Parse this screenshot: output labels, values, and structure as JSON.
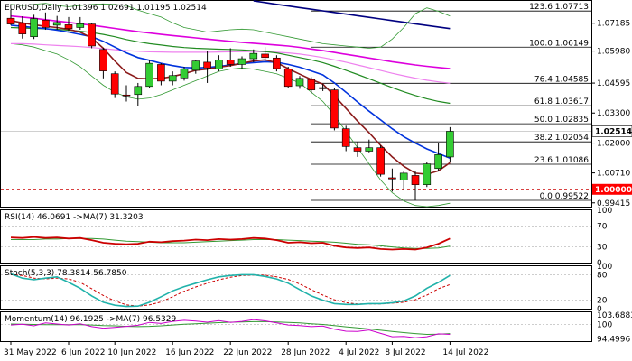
{
  "header": {
    "main": "EURUSD,Daily  1.01396 1.02691 1.01195 1.02514",
    "rsi": "RSI(14) 46.0691  ->MA(7) 31.3203",
    "stoch": "Stoch(5,3,3) 78.3814 56.7850",
    "momentum": "Momentum(14) 96.1925  ->MA(7) 96.5329"
  },
  "colors": {
    "bull": "#33cc33",
    "bear": "#ff0000",
    "wick": "#000000",
    "ma_darkred": "#8b1a1a",
    "ma_blue": "#0033dd",
    "ma_green": "#228b22",
    "ma_magenta": "#dd00dd",
    "ma_pink": "#ee82ee",
    "ma_navy": "#000080",
    "bollinger": "#339933",
    "fib_line": "#000000",
    "dotted": "#cc0000",
    "rsi_line": "#cc0000",
    "rsi_ma": "#339933",
    "stoch_main": "#20b2aa",
    "stoch_signal": "#cc0000",
    "mom_line": "#cc00cc",
    "mom_ma": "#339933",
    "level_tag_bg": "#ff0000"
  },
  "chart_data": [
    {
      "type": "candlestick",
      "title": "EURUSD,Daily",
      "ohlc_last": {
        "open": 1.01396,
        "high": 1.02691,
        "low": 1.01195,
        "close": 1.02514
      },
      "x_ticks": [
        "31 May 2022",
        "6 Jun 2022",
        "10 Jun 2022",
        "16 Jun 2022",
        "22 Jun 2022",
        "28 Jun 2022",
        "4 Jul 2022",
        "8 Jul 2022",
        "14 Jul 2022"
      ],
      "y_ticks": [
        1.07185,
        1.0598,
        1.04595,
        1.033,
        1.02,
        1.0071,
        0.99415
      ],
      "ylim": [
        0.9925,
        1.0815
      ],
      "candles": [
        {
          "o": 1.074,
          "h": 1.0778,
          "l": 1.071,
          "c": 1.0715
        },
        {
          "o": 1.0718,
          "h": 1.0748,
          "l": 1.0652,
          "c": 1.0672
        },
        {
          "o": 1.066,
          "h": 1.0755,
          "l": 1.065,
          "c": 1.0738
        },
        {
          "o": 1.0732,
          "h": 1.0765,
          "l": 1.069,
          "c": 1.07
        },
        {
          "o": 1.071,
          "h": 1.075,
          "l": 1.069,
          "c": 1.0722
        },
        {
          "o": 1.0712,
          "h": 1.0745,
          "l": 1.0685,
          "c": 1.0695
        },
        {
          "o": 1.07,
          "h": 1.0745,
          "l": 1.069,
          "c": 1.0716
        },
        {
          "o": 1.0715,
          "h": 1.072,
          "l": 1.061,
          "c": 1.062
        },
        {
          "o": 1.0605,
          "h": 1.0612,
          "l": 1.048,
          "c": 1.0512
        },
        {
          "o": 1.05,
          "h": 1.051,
          "l": 1.0395,
          "c": 1.0412
        },
        {
          "o": 1.0408,
          "h": 1.045,
          "l": 1.038,
          "c": 1.0405
        },
        {
          "o": 1.041,
          "h": 1.046,
          "l": 1.036,
          "c": 1.0445
        },
        {
          "o": 1.0445,
          "h": 1.056,
          "l": 1.044,
          "c": 1.0545
        },
        {
          "o": 1.054,
          "h": 1.0545,
          "l": 1.045,
          "c": 1.0468
        },
        {
          "o": 1.0468,
          "h": 1.051,
          "l": 1.045,
          "c": 1.0492
        },
        {
          "o": 1.0482,
          "h": 1.053,
          "l": 1.047,
          "c": 1.052
        },
        {
          "o": 1.0515,
          "h": 1.056,
          "l": 1.05,
          "c": 1.0555
        },
        {
          "o": 1.055,
          "h": 1.06,
          "l": 1.046,
          "c": 1.0525
        },
        {
          "o": 1.052,
          "h": 1.058,
          "l": 1.051,
          "c": 1.056
        },
        {
          "o": 1.056,
          "h": 1.061,
          "l": 1.053,
          "c": 1.054
        },
        {
          "o": 1.054,
          "h": 1.0575,
          "l": 1.052,
          "c": 1.0565
        },
        {
          "o": 1.0565,
          "h": 1.0605,
          "l": 1.055,
          "c": 1.0588
        },
        {
          "o": 1.0585,
          "h": 1.0615,
          "l": 1.0555,
          "c": 1.057
        },
        {
          "o": 1.0568,
          "h": 1.058,
          "l": 1.051,
          "c": 1.0522
        },
        {
          "o": 1.052,
          "h": 1.053,
          "l": 1.044,
          "c": 1.0445
        },
        {
          "o": 1.0448,
          "h": 1.049,
          "l": 1.0435,
          "c": 1.048
        },
        {
          "o": 1.0475,
          "h": 1.0485,
          "l": 1.0415,
          "c": 1.043
        },
        {
          "o": 1.044,
          "h": 1.0455,
          "l": 1.0425,
          "c": 1.0435
        },
        {
          "o": 1.043,
          "h": 1.044,
          "l": 1.0255,
          "c": 1.0265
        },
        {
          "o": 1.0262,
          "h": 1.0275,
          "l": 1.0165,
          "c": 1.0185
        },
        {
          "o": 1.018,
          "h": 1.0205,
          "l": 1.014,
          "c": 1.0165
        },
        {
          "o": 1.0165,
          "h": 1.0215,
          "l": 1.016,
          "c": 1.018
        },
        {
          "o": 1.018,
          "h": 1.019,
          "l": 1.0055,
          "c": 1.0065
        },
        {
          "o": 1.005,
          "h": 1.009,
          "l": 0.999,
          "c": 1.0045
        },
        {
          "o": 1.004,
          "h": 1.008,
          "l": 1.0,
          "c": 1.007
        },
        {
          "o": 1.006,
          "h": 1.008,
          "l": 0.9952,
          "c": 1.002
        },
        {
          "o": 1.002,
          "h": 1.012,
          "l": 1.001,
          "c": 1.011
        },
        {
          "o": 1.009,
          "h": 1.02,
          "l": 1.008,
          "c": 1.015
        },
        {
          "o": 1.014,
          "h": 1.0269,
          "l": 1.012,
          "c": 1.0251
        }
      ],
      "fib_levels": [
        {
          "label": "123.6 1.07713",
          "value": 1.07713,
          "start": 26
        },
        {
          "label": "100.0 1.06149",
          "value": 1.06149,
          "start": 26
        },
        {
          "label": "76.4 1.04585",
          "value": 1.04585,
          "start": 26
        },
        {
          "label": "61.8 1.03617",
          "value": 1.03617,
          "start": 26
        },
        {
          "label": "50.0 1.02835",
          "value": 1.02835,
          "start": 26
        },
        {
          "label": "38.2 1.02054",
          "value": 1.02054,
          "start": 26
        },
        {
          "label": "23.6 1.01086",
          "value": 1.01086,
          "start": 26
        },
        {
          "label": "0.0 0.99522",
          "value": 0.99522,
          "start": 26
        }
      ],
      "level_line": 1.0,
      "level_tag": "1.00000",
      "price_tag": "1.02514",
      "last_close_line": 1.02514,
      "moving_averages": [
        {
          "color": "ma_navy",
          "values": [
            null,
            null,
            null,
            null,
            null,
            null,
            null,
            null,
            null,
            null,
            null,
            null,
            null,
            null,
            null,
            null,
            null,
            null,
            null,
            null,
            null,
            1.0815,
            1.0808,
            1.08,
            1.0793,
            1.0786,
            1.0779,
            1.0772,
            1.0765,
            1.0758,
            1.0751,
            1.0744,
            1.0737,
            1.073,
            1.0723,
            1.0716,
            1.0709,
            1.0702,
            1.0695
          ]
        },
        {
          "color": "ma_magenta",
          "values": [
            1.075,
            1.0745,
            1.074,
            1.0734,
            1.0728,
            1.0722,
            1.0716,
            1.071,
            1.0703,
            1.0696,
            1.0689,
            1.0682,
            1.0676,
            1.067,
            1.0665,
            1.066,
            1.0655,
            1.065,
            1.0645,
            1.064,
            1.0636,
            1.0632,
            1.0628,
            1.0624,
            1.062,
            1.0614,
            1.0607,
            1.06,
            1.0592,
            1.0584,
            1.0576,
            1.0568,
            1.056,
            1.0552,
            1.0545,
            1.0538,
            1.0532,
            1.0527,
            1.0522
          ]
        },
        {
          "color": "ma_pink",
          "values": [
            1.063,
            1.063,
            1.0628,
            1.0625,
            1.0622,
            1.062,
            1.0617,
            1.0613,
            1.0609,
            1.0604,
            1.06,
            1.0597,
            1.0595,
            1.0594,
            1.0593,
            1.0593,
            1.0593,
            1.0593,
            1.0594,
            1.0595,
            1.0596,
            1.0596,
            1.0595,
            1.0593,
            1.059,
            1.0585,
            1.0578,
            1.057,
            1.056,
            1.055,
            1.0538,
            1.0526,
            1.0514,
            1.0502,
            1.0491,
            1.0481,
            1.0472,
            1.0465,
            1.0459
          ]
        },
        {
          "color": "ma_green",
          "values": [
            1.07,
            1.0698,
            1.0696,
            1.0694,
            1.0692,
            1.0688,
            1.0684,
            1.0678,
            1.067,
            1.066,
            1.0648,
            1.0638,
            1.063,
            1.0624,
            1.0618,
            1.0613,
            1.061,
            1.0608,
            1.0606,
            1.0605,
            1.0603,
            1.06,
            1.0596,
            1.059,
            1.058,
            1.057,
            1.056,
            1.0548,
            1.0532,
            1.0515,
            1.0497,
            1.0478,
            1.0459,
            1.044,
            1.0422,
            1.0406,
            1.0392,
            1.038,
            1.0372
          ]
        },
        {
          "color": "ma_blue",
          "values": [
            1.071,
            1.0705,
            1.07,
            1.0695,
            1.0688,
            1.068,
            1.067,
            1.066,
            1.064,
            1.0615,
            1.059,
            1.057,
            1.0558,
            1.0545,
            1.0535,
            1.0527,
            1.0525,
            1.0527,
            1.0532,
            1.0538,
            1.0544,
            1.0548,
            1.0552,
            1.055,
            1.054,
            1.0528,
            1.0512,
            1.0495,
            1.046,
            1.042,
            1.0378,
            1.0338,
            1.03,
            1.0262,
            1.0228,
            1.02,
            1.0175,
            1.0155,
            1.0135
          ]
        },
        {
          "color": "ma_darkred",
          "values": [
            1.073,
            1.072,
            1.0712,
            1.0705,
            1.07,
            1.0692,
            1.068,
            1.0655,
            1.061,
            1.0555,
            1.0505,
            1.048,
            1.0478,
            1.048,
            1.0488,
            1.05,
            1.0515,
            1.052,
            1.0528,
            1.0535,
            1.0545,
            1.0555,
            1.056,
            1.0548,
            1.0522,
            1.0498,
            1.0475,
            1.0455,
            1.0405,
            1.035,
            1.0295,
            1.0245,
            1.019,
            1.014,
            1.01,
            1.007,
            1.0065,
            1.008,
            1.0115
          ]
        }
      ],
      "bollinger": {
        "upper": [
          1.08,
          1.0795,
          1.08,
          1.0805,
          1.0795,
          1.079,
          1.0795,
          1.08,
          1.0802,
          1.08,
          1.0795,
          1.0775,
          1.076,
          1.0745,
          1.072,
          1.07,
          1.069,
          1.068,
          1.0685,
          1.069,
          1.0693,
          1.069,
          1.068,
          1.067,
          1.066,
          1.065,
          1.064,
          1.063,
          1.0625,
          1.062,
          1.0615,
          1.061,
          1.0615,
          1.065,
          1.07,
          1.076,
          1.0785,
          1.077,
          1.075
        ],
        "lower": [
          1.063,
          1.0625,
          1.0615,
          1.06,
          1.0585,
          1.056,
          1.053,
          1.049,
          1.045,
          1.042,
          1.04,
          1.039,
          1.0395,
          1.041,
          1.043,
          1.045,
          1.047,
          1.049,
          1.051,
          1.052,
          1.0525,
          1.052,
          1.051,
          1.05,
          1.048,
          1.046,
          1.042,
          1.038,
          1.032,
          1.025,
          1.018,
          1.011,
          1.004,
          0.9985,
          0.995,
          0.993,
          0.9925,
          0.993,
          0.994
        ]
      }
    },
    {
      "type": "line",
      "title": "RSI(14) 46.0691  ->MA(7) 31.3203",
      "y_ticks": [
        70,
        30
      ],
      "ylim": [
        0,
        100
      ],
      "series": [
        {
          "color": "rsi_line",
          "values": [
            48,
            47,
            49,
            47,
            48,
            46,
            47,
            43,
            38,
            36,
            35,
            36,
            40,
            39,
            41,
            42,
            44,
            43,
            45,
            44,
            45,
            47,
            46,
            43,
            38,
            39,
            37,
            38,
            32,
            29,
            28,
            29,
            26,
            25,
            26,
            25,
            29,
            36,
            46.07
          ]
        },
        {
          "color": "rsi_ma",
          "values": [
            44,
            44,
            44,
            45,
            45,
            46,
            46,
            46,
            45,
            43,
            41,
            40,
            39,
            38,
            38,
            38,
            39,
            40,
            41,
            42,
            43,
            44,
            44,
            44,
            43,
            42,
            41,
            40,
            39,
            37,
            35,
            34,
            32,
            30,
            28,
            27,
            27,
            28,
            31.32
          ]
        }
      ]
    },
    {
      "type": "line",
      "title": "Stoch(5,3,3) 78.3814 56.7850",
      "y_ticks": [
        80,
        20
      ],
      "ylim": [
        0,
        100
      ],
      "series": [
        {
          "color": "stoch_main",
          "values": [
            82,
            72,
            68,
            72,
            75,
            62,
            48,
            30,
            15,
            8,
            5,
            6,
            15,
            28,
            42,
            52,
            60,
            68,
            75,
            78,
            80,
            80,
            76,
            70,
            60,
            45,
            30,
            20,
            12,
            10,
            10,
            12,
            12,
            14,
            18,
            30,
            48,
            62,
            78.38
          ]
        },
        {
          "color": "stoch_signal",
          "dashed": true,
          "values": [
            80,
            78,
            72,
            70,
            72,
            70,
            62,
            47,
            31,
            18,
            9,
            6,
            9,
            16,
            28,
            41,
            51,
            60,
            68,
            74,
            78,
            79,
            79,
            75,
            69,
            58,
            45,
            32,
            21,
            14,
            11,
            11,
            11,
            13,
            15,
            21,
            32,
            47,
            56.79
          ]
        }
      ]
    },
    {
      "type": "line",
      "title": "Momentum(14) 96.1925  ->MA(7) 96.5329",
      "y_ticks": [
        103.6883,
        100,
        94.4996
      ],
      "ylim": [
        93.6,
        104.7
      ],
      "series": [
        {
          "color": "mom_line",
          "values": [
            99.8,
            100.1,
            99.5,
            100.6,
            100.2,
            99.8,
            100.3,
            99.2,
            98.6,
            98.9,
            99.3,
            99.7,
            100.8,
            100.4,
            101.2,
            101.6,
            101.3,
            100.9,
            101.5,
            100.8,
            101.2,
            101.9,
            101.4,
            100.6,
            99.8,
            99.6,
            99.2,
            99.4,
            98.2,
            97.4,
            97.3,
            97.9,
            96.6,
            95.3,
            95.4,
            94.9,
            95.3,
            96.4,
            96.19
          ]
        },
        {
          "color": "mom_ma",
          "values": [
            100.2,
            100.1,
            100.0,
            99.9,
            99.9,
            99.9,
            99.9,
            99.8,
            99.6,
            99.5,
            99.3,
            99.2,
            99.3,
            99.5,
            99.8,
            100.1,
            100.3,
            100.5,
            100.7,
            100.9,
            101.0,
            101.1,
            101.1,
            101.0,
            100.8,
            100.6,
            100.3,
            100.0,
            99.6,
            99.1,
            98.7,
            98.3,
            97.8,
            97.3,
            96.9,
            96.5,
            96.2,
            96.3,
            96.53
          ]
        }
      ]
    }
  ]
}
